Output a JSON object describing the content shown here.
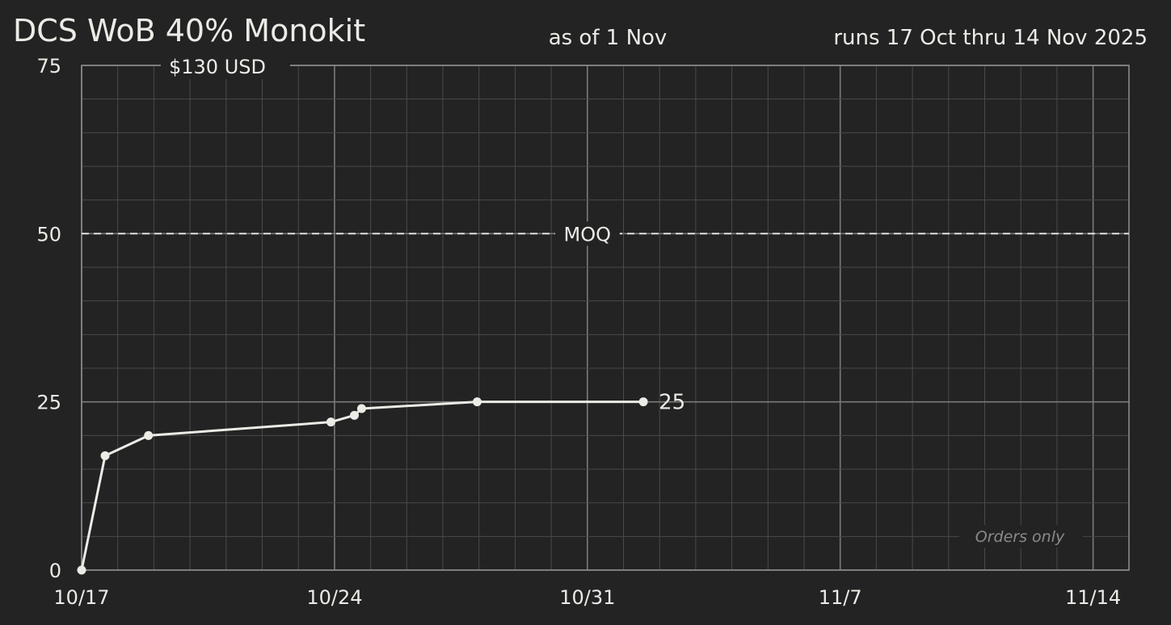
{
  "chart_data": {
    "type": "line",
    "title": "DCS WoB 40% Monokit",
    "as_of": "as of 1 Nov",
    "runs": "runs 17 Oct thru 14 Nov 2025",
    "price": "$130 USD",
    "note": "Orders only",
    "end_label": "25",
    "moq": {
      "label": "MOQ",
      "value": 50
    },
    "x_ticks": [
      {
        "label": "10/17",
        "day": 0
      },
      {
        "label": "10/24",
        "day": 7
      },
      {
        "label": "10/31",
        "day": 14
      },
      {
        "label": "11/7",
        "day": 21
      },
      {
        "label": "11/14",
        "day": 28
      }
    ],
    "y_ticks": [
      {
        "label": "0",
        "value": 0
      },
      {
        "label": "25",
        "value": 25
      },
      {
        "label": "50",
        "value": 50
      },
      {
        "label": "75",
        "value": 75
      }
    ],
    "xlim": [
      0,
      29
    ],
    "ylim": [
      0,
      75
    ],
    "series": [
      {
        "points": [
          {
            "x": 0,
            "y": 0
          },
          {
            "x": 0.65,
            "y": 17
          },
          {
            "x": 1.85,
            "y": 20
          },
          {
            "x": 6.9,
            "y": 22
          },
          {
            "x": 7.55,
            "y": 23
          },
          {
            "x": 7.75,
            "y": 24
          },
          {
            "x": 10.95,
            "y": 25
          },
          {
            "x": 15.55,
            "y": 25
          }
        ]
      }
    ],
    "grid": true,
    "colors": {
      "background": "#232323",
      "grid_minor": "#4a4a4a",
      "grid_major": "#7a7a7a",
      "frame": "#8a8a8a",
      "line": "#ecebe6",
      "text": "#ecebe6",
      "note": "#8a8a8a"
    }
  }
}
